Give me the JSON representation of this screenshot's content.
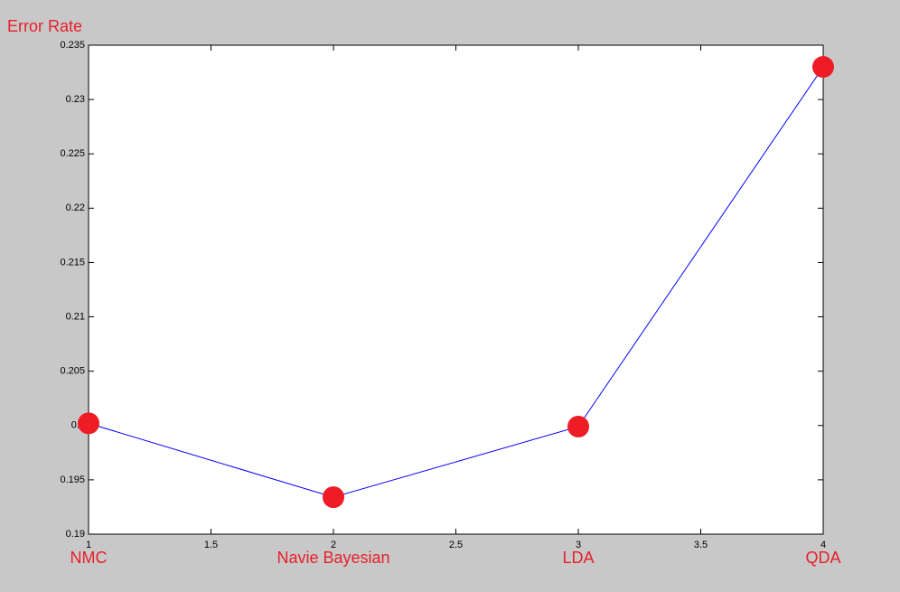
{
  "chart_data": {
    "type": "line",
    "ylabel": "Error Rate",
    "x": [
      1,
      2,
      3,
      4
    ],
    "category_labels": [
      "NMC",
      "Navie Bayesian",
      "LDA",
      "QDA"
    ],
    "series": [
      {
        "color": "#0000ff",
        "marker_color": "#ee1c25",
        "values": [
          0.2002,
          0.1934,
          0.1999,
          0.233
        ]
      }
    ],
    "xlim": [
      1,
      4
    ],
    "xticks": [
      1,
      1.5,
      2,
      2.5,
      3,
      3.5,
      4
    ],
    "ylim": [
      0.19,
      0.235
    ],
    "yticks": [
      0.19,
      0.195,
      0.2,
      0.205,
      0.21,
      0.215,
      0.22,
      0.225,
      0.23,
      0.235
    ],
    "grid": false
  }
}
